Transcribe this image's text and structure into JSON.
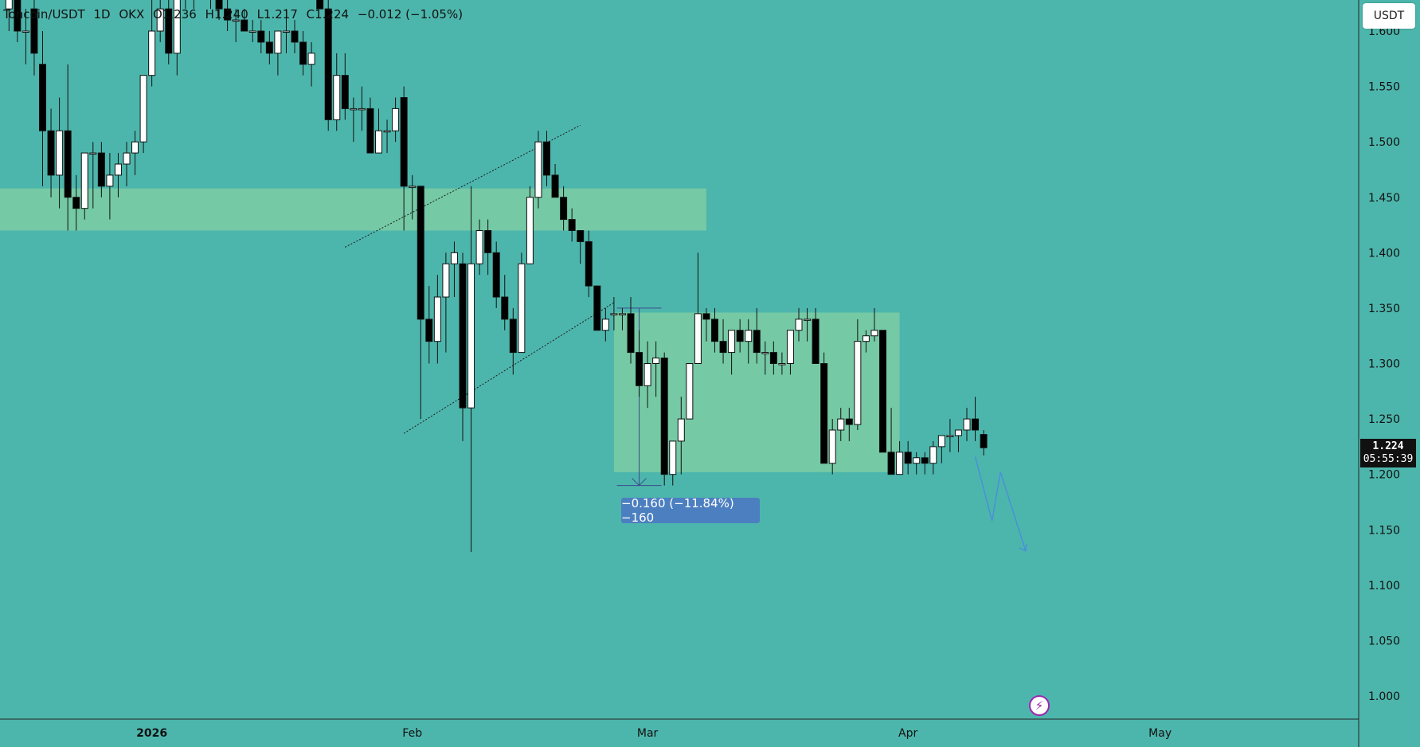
{
  "legend": {
    "symbol": "Toncoin/USDT",
    "interval": "1D",
    "exchange": "OKX",
    "open": "O1.236",
    "high": "H1.240",
    "low": "L1.217",
    "close": "C1.224",
    "change": "−0.012 (−1.05%)"
  },
  "currency_badge": "USDT",
  "current_price": {
    "value": "1.224",
    "countdown": "05:55:39"
  },
  "measure_label": "−0.160 (−11.84%) −160",
  "icons": {
    "flash": "lightning-icon"
  },
  "colors": {
    "background": "#4db6ac",
    "zone": "#7ccca3",
    "up_body": "#ffffff",
    "down_body": "#000000",
    "projection": "#4a90d9",
    "measure_label_bg": "#4c7fc0"
  },
  "chart_data": {
    "type": "candlestick",
    "y_axis": {
      "ticks": [
        "1.000",
        "1.050",
        "1.100",
        "1.150",
        "1.200",
        "1.250",
        "1.300",
        "1.350",
        "1.400",
        "1.450",
        "1.500",
        "1.550",
        "1.600"
      ],
      "range": [
        0.98,
        1.64
      ]
    },
    "x_axis": {
      "labels": [
        {
          "label": "2026",
          "bold": true,
          "index": 17
        },
        {
          "label": "Feb",
          "bold": false,
          "index": 48
        },
        {
          "label": "Mar",
          "bold": false,
          "index": 76
        },
        {
          "label": "Apr",
          "bold": false,
          "index": 107
        },
        {
          "label": "May",
          "bold": false,
          "index": 137
        }
      ]
    },
    "candles": [
      [
        1.62,
        1.64,
        1.6,
        1.63
      ],
      [
        1.63,
        1.64,
        1.59,
        1.6
      ],
      [
        1.6,
        1.62,
        1.57,
        1.6
      ],
      [
        1.62,
        1.64,
        1.56,
        1.58
      ],
      [
        1.57,
        1.6,
        1.46,
        1.51
      ],
      [
        1.51,
        1.53,
        1.45,
        1.47
      ],
      [
        1.47,
        1.54,
        1.44,
        1.51
      ],
      [
        1.51,
        1.57,
        1.42,
        1.45
      ],
      [
        1.45,
        1.47,
        1.42,
        1.44
      ],
      [
        1.44,
        1.49,
        1.43,
        1.49
      ],
      [
        1.49,
        1.5,
        1.44,
        1.49
      ],
      [
        1.49,
        1.5,
        1.45,
        1.46
      ],
      [
        1.46,
        1.49,
        1.43,
        1.47
      ],
      [
        1.47,
        1.49,
        1.45,
        1.48
      ],
      [
        1.48,
        1.5,
        1.46,
        1.49
      ],
      [
        1.49,
        1.51,
        1.47,
        1.5
      ],
      [
        1.5,
        1.56,
        1.49,
        1.56
      ],
      [
        1.56,
        1.64,
        1.55,
        1.6
      ],
      [
        1.6,
        1.65,
        1.59,
        1.62
      ],
      [
        1.62,
        1.64,
        1.57,
        1.58
      ],
      [
        1.58,
        1.63,
        1.56,
        1.63
      ],
      [
        1.63,
        1.65,
        1.62,
        1.64
      ],
      [
        1.64,
        1.66,
        1.62,
        1.65
      ],
      [
        1.65,
        1.66,
        1.63,
        1.64
      ],
      [
        1.64,
        1.65,
        1.62,
        1.63
      ],
      [
        1.63,
        1.64,
        1.61,
        1.62
      ],
      [
        1.62,
        1.63,
        1.6,
        1.61
      ],
      [
        1.61,
        1.62,
        1.59,
        1.61
      ],
      [
        1.61,
        1.62,
        1.6,
        1.6
      ],
      [
        1.6,
        1.61,
        1.59,
        1.6
      ],
      [
        1.6,
        1.61,
        1.58,
        1.59
      ],
      [
        1.59,
        1.6,
        1.57,
        1.58
      ],
      [
        1.58,
        1.6,
        1.56,
        1.6
      ],
      [
        1.6,
        1.62,
        1.58,
        1.6
      ],
      [
        1.6,
        1.61,
        1.58,
        1.59
      ],
      [
        1.59,
        1.6,
        1.56,
        1.57
      ],
      [
        1.57,
        1.59,
        1.55,
        1.58
      ],
      [
        1.66,
        1.68,
        1.62,
        1.62
      ],
      [
        1.62,
        1.63,
        1.51,
        1.52
      ],
      [
        1.52,
        1.58,
        1.51,
        1.56
      ],
      [
        1.56,
        1.58,
        1.52,
        1.53
      ],
      [
        1.53,
        1.54,
        1.5,
        1.53
      ],
      [
        1.53,
        1.55,
        1.51,
        1.53
      ],
      [
        1.53,
        1.54,
        1.49,
        1.49
      ],
      [
        1.49,
        1.53,
        1.49,
        1.51
      ],
      [
        1.51,
        1.52,
        1.49,
        1.51
      ],
      [
        1.51,
        1.54,
        1.5,
        1.53
      ],
      [
        1.54,
        1.55,
        1.42,
        1.46
      ],
      [
        1.46,
        1.47,
        1.43,
        1.46
      ],
      [
        1.46,
        1.46,
        1.25,
        1.34
      ],
      [
        1.34,
        1.37,
        1.3,
        1.32
      ],
      [
        1.32,
        1.38,
        1.3,
        1.36
      ],
      [
        1.36,
        1.4,
        1.31,
        1.39
      ],
      [
        1.39,
        1.41,
        1.36,
        1.4
      ],
      [
        1.39,
        1.4,
        1.23,
        1.26
      ],
      [
        1.26,
        1.46,
        1.13,
        1.39
      ],
      [
        1.39,
        1.43,
        1.38,
        1.42
      ],
      [
        1.42,
        1.43,
        1.38,
        1.4
      ],
      [
        1.4,
        1.41,
        1.35,
        1.36
      ],
      [
        1.36,
        1.38,
        1.33,
        1.34
      ],
      [
        1.34,
        1.35,
        1.29,
        1.31
      ],
      [
        1.31,
        1.4,
        1.31,
        1.39
      ],
      [
        1.39,
        1.46,
        1.39,
        1.45
      ],
      [
        1.45,
        1.51,
        1.44,
        1.5
      ],
      [
        1.5,
        1.51,
        1.46,
        1.47
      ],
      [
        1.47,
        1.48,
        1.45,
        1.45
      ],
      [
        1.45,
        1.46,
        1.42,
        1.43
      ],
      [
        1.43,
        1.44,
        1.41,
        1.42
      ],
      [
        1.42,
        1.42,
        1.39,
        1.41
      ],
      [
        1.41,
        1.42,
        1.36,
        1.37
      ],
      [
        1.37,
        1.37,
        1.33,
        1.33
      ],
      [
        1.33,
        1.35,
        1.32,
        1.34
      ],
      [
        1.345,
        1.36,
        1.33,
        1.345
      ],
      [
        1.345,
        1.35,
        1.33,
        1.345
      ],
      [
        1.345,
        1.36,
        1.3,
        1.31
      ],
      [
        1.31,
        1.33,
        1.27,
        1.28
      ],
      [
        1.28,
        1.32,
        1.26,
        1.3
      ],
      [
        1.3,
        1.32,
        1.27,
        1.305
      ],
      [
        1.305,
        1.31,
        1.19,
        1.2
      ],
      [
        1.2,
        1.23,
        1.19,
        1.23
      ],
      [
        1.23,
        1.27,
        1.2,
        1.25
      ],
      [
        1.25,
        1.3,
        1.25,
        1.3
      ],
      [
        1.3,
        1.4,
        1.3,
        1.345
      ],
      [
        1.345,
        1.35,
        1.32,
        1.34
      ],
      [
        1.34,
        1.35,
        1.31,
        1.32
      ],
      [
        1.32,
        1.34,
        1.3,
        1.31
      ],
      [
        1.31,
        1.33,
        1.29,
        1.33
      ],
      [
        1.33,
        1.34,
        1.31,
        1.32
      ],
      [
        1.32,
        1.34,
        1.3,
        1.33
      ],
      [
        1.33,
        1.35,
        1.3,
        1.31
      ],
      [
        1.31,
        1.32,
        1.29,
        1.31
      ],
      [
        1.31,
        1.32,
        1.29,
        1.3
      ],
      [
        1.3,
        1.31,
        1.29,
        1.3
      ],
      [
        1.3,
        1.33,
        1.29,
        1.33
      ],
      [
        1.33,
        1.35,
        1.32,
        1.34
      ],
      [
        1.34,
        1.35,
        1.32,
        1.34
      ],
      [
        1.34,
        1.35,
        1.3,
        1.3
      ],
      [
        1.3,
        1.31,
        1.21,
        1.21
      ],
      [
        1.21,
        1.25,
        1.2,
        1.24
      ],
      [
        1.24,
        1.26,
        1.23,
        1.25
      ],
      [
        1.25,
        1.26,
        1.23,
        1.245
      ],
      [
        1.245,
        1.34,
        1.24,
        1.32
      ],
      [
        1.32,
        1.33,
        1.31,
        1.325
      ],
      [
        1.325,
        1.35,
        1.32,
        1.33
      ],
      [
        1.33,
        1.33,
        1.22,
        1.22
      ],
      [
        1.22,
        1.26,
        1.2,
        1.2
      ],
      [
        1.2,
        1.23,
        1.2,
        1.22
      ],
      [
        1.22,
        1.23,
        1.2,
        1.21
      ],
      [
        1.21,
        1.22,
        1.2,
        1.215
      ],
      [
        1.215,
        1.22,
        1.2,
        1.21
      ],
      [
        1.21,
        1.23,
        1.2,
        1.225
      ],
      [
        1.225,
        1.23,
        1.21,
        1.235
      ],
      [
        1.235,
        1.25,
        1.22,
        1.235
      ],
      [
        1.235,
        1.24,
        1.22,
        1.24
      ],
      [
        1.24,
        1.26,
        1.23,
        1.25
      ],
      [
        1.25,
        1.27,
        1.23,
        1.24
      ],
      [
        1.236,
        1.24,
        1.217,
        1.224
      ]
    ],
    "zones": [
      {
        "y_top": 1.458,
        "y_bottom": 1.42,
        "x_start": -1,
        "x_end": 83
      },
      {
        "y_top": 1.346,
        "y_bottom": 1.202,
        "x_start": 72,
        "x_end": 106
      }
    ],
    "trendlines": [
      {
        "from": [
          40,
          1.405
        ],
        "to": [
          68,
          1.515
        ]
      },
      {
        "from": [
          47,
          1.237
        ],
        "to": [
          72,
          1.355
        ]
      }
    ],
    "measure": {
      "from_price": 1.35,
      "to_price": 1.19,
      "x": 75
    },
    "projection": [
      [
        115,
        1.216
      ],
      [
        117,
        1.158
      ],
      [
        118,
        1.202
      ],
      [
        121,
        1.131
      ]
    ]
  }
}
